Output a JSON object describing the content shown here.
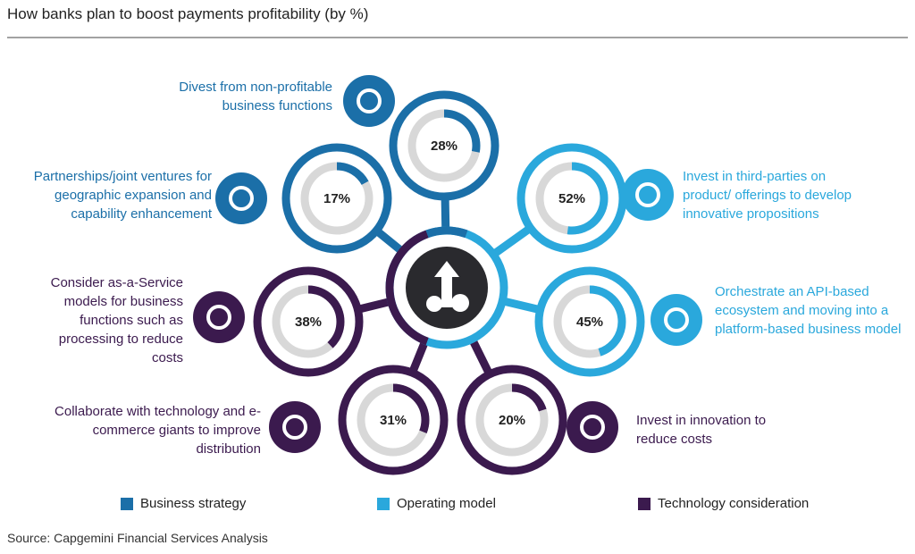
{
  "chart_data": {
    "type": "gauge-wheel",
    "title": "How banks plan to boost payments profitability (by %)",
    "source": "Source: Capgemini Financial Services Analysis",
    "series": [
      {
        "name": "Business strategy",
        "color": "#1b6fa8",
        "categories": [
          "Divest from non-profitable business functions",
          "Partnerships/joint ventures for geographic expansion and capability enhancement"
        ],
        "values": [
          28,
          17
        ],
        "value_labels": [
          "28%",
          "17%"
        ]
      },
      {
        "name": "Operating model",
        "color": "#2aa8dc",
        "categories": [
          "Invest in third-parties on product/ offerings to develop innovative propositions",
          "Orchestrate an API-based ecosystem and moving into a platform-based business model"
        ],
        "values": [
          52,
          45
        ],
        "value_labels": [
          "52%",
          "45%"
        ]
      },
      {
        "name": "Technology consideration",
        "color": "#3b1a4e",
        "categories": [
          "Consider as-a-Service models for business functions such as processing to reduce costs",
          "Collaborate with technology and e-commerce giants to improve distribution",
          "Invest in innovation to reduce costs"
        ],
        "values": [
          38,
          31,
          20
        ],
        "value_labels": [
          "38%",
          "31%",
          "20%"
        ]
      }
    ],
    "ylim": [
      0,
      100
    ]
  }
}
